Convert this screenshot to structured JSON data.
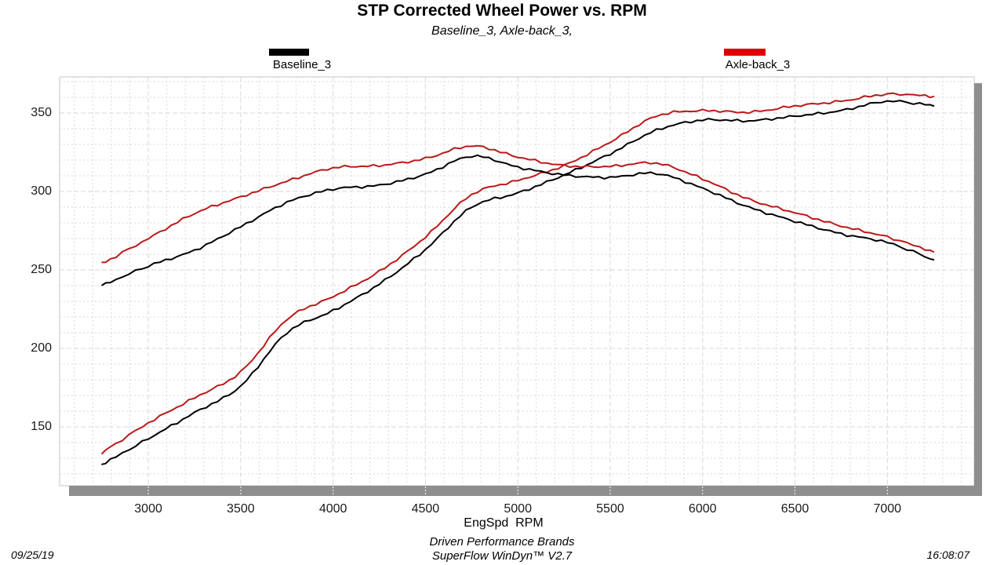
{
  "header": {
    "title": "STP Corrected Wheel Power vs. RPM",
    "subtitle": "Baseline_3, Axle-back_3,"
  },
  "legends": [
    {
      "label": "Baseline_3",
      "color": "#000000"
    },
    {
      "label": "Axle-back_3",
      "color": "#dd0000"
    }
  ],
  "axes": {
    "xlabel": "EngSpd  RPM",
    "x_tick_labels": [
      3000,
      3500,
      4000,
      4500,
      5000,
      5500,
      6000,
      6500,
      7000
    ],
    "y_tick_labels": [
      150,
      200,
      250,
      300,
      350
    ]
  },
  "footer": {
    "line1": "Driven Performance Brands",
    "line2": "SuperFlow WinDyn™ V2.7",
    "date": "09/25/19",
    "time": "16:08:07"
  },
  "style_colors": {
    "baseline_curve": "#000000",
    "axleback_curve": "#bb1919",
    "gridline": "#d9d9d9",
    "plot_border": "#c4c4c4",
    "shadow": "#8e8e8e"
  },
  "chart_data": {
    "type": "line",
    "title": "STP Corrected Wheel Power vs. RPM",
    "xlabel": "EngSpd  RPM",
    "ylabel": "",
    "xlim": [
      2520,
      7470
    ],
    "ylim": [
      112.5,
      373
    ],
    "x_major_ticks": [
      3000,
      3500,
      4000,
      4500,
      5000,
      5500,
      6000,
      6500,
      7000
    ],
    "y_major_ticks": [
      150,
      200,
      250,
      300,
      350
    ],
    "x_minor_step": 100,
    "y_minor_step": 10,
    "grid": "dashed",
    "legend_position": "top",
    "x": [
      2750,
      3000,
      3250,
      3500,
      3750,
      4000,
      4250,
      4500,
      4750,
      5000,
      5250,
      5500,
      5750,
      6000,
      6250,
      6500,
      6750,
      7000,
      7250
    ],
    "series": [
      {
        "name": "Baseline_3 power",
        "run": "Baseline_3",
        "color": "#000000",
        "values": [
          126,
          142.5,
          159,
          176,
          210,
          224,
          241,
          263,
          290,
          299,
          310.5,
          324,
          339,
          345.5,
          345,
          348,
          351.5,
          357.5,
          354.5
        ]
      },
      {
        "name": "Axle-back_3 power",
        "run": "Axle-back_3",
        "color": "#bb1919",
        "values": [
          133.5,
          152.5,
          168.5,
          185,
          218.5,
          233,
          249,
          271,
          298,
          307,
          316.5,
          331.5,
          348,
          351.5,
          350.5,
          354.5,
          357.5,
          362,
          360.5
        ]
      },
      {
        "name": "Baseline_3 torque",
        "run": "Baseline_3",
        "color": "#000000",
        "values": [
          240,
          252.5,
          262.5,
          277.5,
          293,
          301.5,
          304,
          311,
          322.5,
          315.5,
          310.5,
          309,
          311.5,
          302,
          290,
          281,
          273,
          267.5,
          256.5
        ]
      },
      {
        "name": "Axle-back_3 torque",
        "run": "Axle-back_3",
        "color": "#bb1919",
        "values": [
          254,
          270,
          286,
          296.5,
          306.5,
          315,
          316.5,
          321,
          329,
          322,
          316.5,
          316,
          318,
          308,
          295,
          286.5,
          278,
          271,
          261.5
        ]
      }
    ]
  }
}
